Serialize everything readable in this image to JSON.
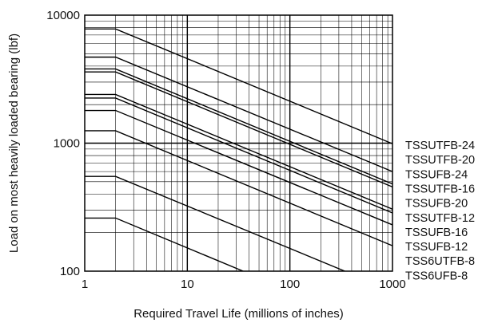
{
  "chart_data": {
    "type": "line",
    "xlabel": "Required Travel Life (millions of inches)",
    "ylabel": "Load on most heavily loaded bearing (lbf)",
    "x_scale": "log",
    "y_scale": "log",
    "xlim": [
      1,
      1000
    ],
    "ylim": [
      100,
      10000
    ],
    "grid": true,
    "x_ticks": [
      "1",
      "10",
      "100",
      "1000"
    ],
    "y_ticks": [
      "100",
      "1000",
      "10000"
    ],
    "series": [
      {
        "name": "TSSUTFB-24",
        "points": [
          [
            1,
            7800
          ],
          [
            2,
            7800
          ],
          [
            1000,
            990
          ]
        ]
      },
      {
        "name": "TSSUTFB-20",
        "points": [
          [
            1,
            4700
          ],
          [
            2,
            4700
          ],
          [
            1000,
            600
          ]
        ]
      },
      {
        "name": "TSSUFB-24",
        "points": [
          [
            1,
            3800
          ],
          [
            2,
            3800
          ],
          [
            1000,
            480
          ]
        ]
      },
      {
        "name": "TSSUTFB-16",
        "points": [
          [
            1,
            3600
          ],
          [
            2,
            3600
          ],
          [
            1000,
            455
          ]
        ]
      },
      {
        "name": "TSSUFB-20",
        "points": [
          [
            1,
            2400
          ],
          [
            2,
            2400
          ],
          [
            1000,
            305
          ]
        ]
      },
      {
        "name": "TSSUTFB-12",
        "points": [
          [
            1,
            2250
          ],
          [
            2,
            2250
          ],
          [
            1000,
            285
          ]
        ]
      },
      {
        "name": "TSSUFB-16",
        "points": [
          [
            1,
            1800
          ],
          [
            2,
            1800
          ],
          [
            1000,
            230
          ]
        ]
      },
      {
        "name": "TSSUFB-12",
        "points": [
          [
            1,
            1250
          ],
          [
            2,
            1250
          ],
          [
            1000,
            158
          ]
        ]
      },
      {
        "name": "TSS6UTFB-8",
        "points": [
          [
            1,
            550
          ],
          [
            2,
            550
          ],
          [
            343,
            100
          ]
        ]
      },
      {
        "name": "TSS6UFB-8",
        "points": [
          [
            1,
            260
          ],
          [
            2,
            260
          ],
          [
            35,
            100
          ]
        ]
      }
    ]
  }
}
